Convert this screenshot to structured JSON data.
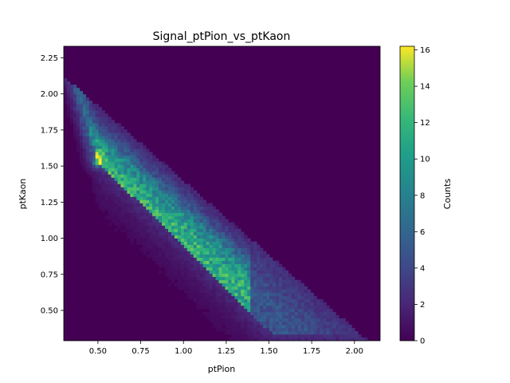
{
  "chart_data": {
    "type": "heatmap",
    "title": "Signal_ptPion_vs_ptKaon",
    "xlabel": "ptPion",
    "ylabel": "ptKaon",
    "xlim": [
      0.3,
      2.15
    ],
    "ylim": [
      0.29,
      2.33
    ],
    "xticks": [
      "0.50",
      "0.75",
      "1.00",
      "1.25",
      "1.50",
      "1.75",
      "2.00"
    ],
    "yticks": [
      "0.50",
      "0.75",
      "1.00",
      "1.25",
      "1.50",
      "1.75",
      "2.00",
      "2.25"
    ],
    "colorbar": {
      "label": "Counts",
      "range": [
        0,
        16.2
      ],
      "ticks": [
        "0",
        "2",
        "4",
        "6",
        "8",
        "10",
        "12",
        "14",
        "16"
      ],
      "colormap": "viridis"
    },
    "description_data": {
      "populated_region_vertices": [
        [
          0.32,
          2.31
        ],
        [
          0.5,
          1.53
        ],
        [
          1.45,
          0.42
        ],
        [
          2.08,
          0.32
        ]
      ],
      "peak": {
        "x": 0.5,
        "y": 1.53,
        "count": 16
      },
      "dense_ridge_counts": 10,
      "background_count": 0
    },
    "grid": false
  }
}
